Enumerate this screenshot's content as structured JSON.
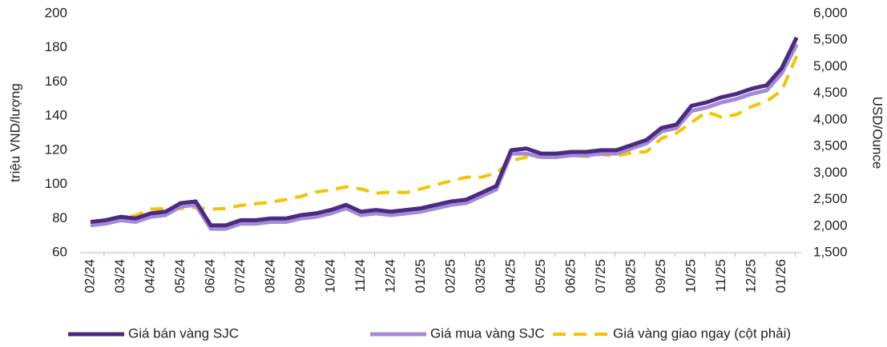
{
  "chart_data": {
    "type": "line",
    "x": [
      "02/24",
      null,
      "03/24",
      null,
      "04/24",
      null,
      "05/24",
      null,
      "06/24",
      null,
      "07/24",
      null,
      "08/24",
      null,
      "09/24",
      null,
      "10/24",
      null,
      "11/24",
      null,
      "12/24",
      null,
      "01/25",
      null,
      "02/25",
      null,
      "03/25",
      null,
      "04/25",
      null,
      "05/25",
      null,
      "06/25",
      null,
      "07/25",
      null,
      "08/25",
      null,
      "09/25",
      null,
      "10/25",
      null,
      "11/25",
      null,
      "12/25",
      null,
      "01/26",
      null
    ],
    "series": [
      {
        "name": "Giá bán vàng SJC",
        "color": "#4b2a82",
        "values": [
          78,
          79,
          81,
          80,
          83,
          84,
          89,
          90,
          76,
          76,
          79,
          79,
          80,
          80,
          82,
          83,
          85,
          88,
          84,
          85,
          84,
          85,
          86,
          88,
          90,
          91,
          95,
          99,
          120,
          121,
          118,
          118,
          119,
          119,
          120,
          120,
          123,
          126,
          133,
          135,
          146,
          148,
          151,
          153,
          156,
          158,
          168,
          186
        ]
      },
      {
        "name": "Giá mua vàng SJC",
        "color": "#a48bd8",
        "values": [
          76,
          77,
          79,
          78,
          81,
          82,
          87,
          88,
          74,
          74,
          77,
          77,
          78,
          78,
          80,
          81,
          83,
          86,
          82,
          83,
          82,
          83,
          84,
          86,
          88,
          89,
          93,
          97,
          118,
          118,
          116,
          116,
          117,
          117,
          118,
          118,
          121,
          124,
          131,
          133,
          143,
          145,
          148,
          150,
          153,
          155,
          165,
          182
        ]
      },
      {
        "name": "Giá vàng giao ngay (cột phải)",
        "color": "#f5c400",
        "axis": "y2",
        "dashed": true,
        "values": [
          2030,
          2040,
          2150,
          2200,
          2320,
          2330,
          2330,
          2350,
          2320,
          2330,
          2390,
          2420,
          2450,
          2500,
          2560,
          2640,
          2680,
          2740,
          2700,
          2620,
          2640,
          2630,
          2700,
          2780,
          2850,
          2920,
          2920,
          3000,
          3230,
          3300,
          3300,
          3320,
          3330,
          3310,
          3350,
          3320,
          3380,
          3400,
          3650,
          3750,
          3950,
          4150,
          4050,
          4100,
          4250,
          4350,
          4550,
          5200
        ]
      }
    ],
    "ylabel": "triệu VND/lượng",
    "y2label": "USD/Ounce",
    "ylim": [
      60,
      200
    ],
    "yticks": [
      60,
      80,
      100,
      120,
      140,
      160,
      180,
      200
    ],
    "y2lim": [
      1500,
      6000
    ],
    "y2ticks": [
      {
        "value": 1500,
        "label": "1,500"
      },
      {
        "value": 2000,
        "label": "2,000"
      },
      {
        "value": 2500,
        "label": "2,500"
      },
      {
        "value": 3000,
        "label": "3,000"
      },
      {
        "value": 3500,
        "label": "3,500"
      },
      {
        "value": 4000,
        "label": "4,000"
      },
      {
        "value": 4500,
        "label": "4,500"
      },
      {
        "value": 5000,
        "label": "5,000"
      },
      {
        "value": 5500,
        "label": "5,500"
      },
      {
        "value": 6000,
        "label": "6,000"
      }
    ],
    "legend": "bottom",
    "grid": false
  }
}
